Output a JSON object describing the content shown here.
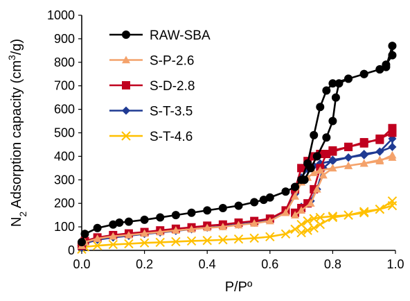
{
  "chart_data": {
    "type": "line",
    "title": "",
    "xlabel": "P/Pº",
    "ylabel_parts": [
      "N",
      "2",
      " Adsorption capacity (cm",
      "3",
      "/g)"
    ],
    "xlim": [
      0,
      1.0
    ],
    "ylim": [
      0,
      1000
    ],
    "x_ticks": [
      "0.0",
      "0.2",
      "0.4",
      "0.6",
      "0.8",
      "1.0"
    ],
    "y_ticks": [
      "0",
      "100",
      "200",
      "300",
      "400",
      "500",
      "600",
      "700",
      "800",
      "900",
      "1000"
    ],
    "grid": false,
    "legend_position": "top-left",
    "series": [
      {
        "name": "RAW-SBA",
        "color": "#000000",
        "marker": "circle",
        "x": [
          0.0,
          0.01,
          0.05,
          0.1,
          0.12,
          0.15,
          0.2,
          0.25,
          0.3,
          0.35,
          0.4,
          0.45,
          0.5,
          0.55,
          0.58,
          0.6,
          0.65,
          0.68,
          0.7,
          0.72,
          0.74,
          0.76,
          0.78,
          0.8,
          0.85,
          0.9,
          0.95,
          0.97,
          0.99,
          0.99,
          0.97,
          0.95,
          0.9,
          0.85,
          0.82,
          0.81,
          0.8,
          0.78,
          0.75,
          0.73,
          0.71
        ],
        "y": [
          35,
          70,
          95,
          110,
          118,
          122,
          130,
          140,
          150,
          160,
          170,
          180,
          190,
          205,
          215,
          225,
          250,
          270,
          300,
          370,
          490,
          610,
          680,
          710,
          730,
          750,
          770,
          790,
          830,
          870,
          780,
          770,
          750,
          730,
          710,
          650,
          550,
          480,
          400,
          350,
          300
        ]
      },
      {
        "name": "S-P-2.6",
        "color": "#F4A26B",
        "marker": "triangle",
        "x": [
          0.0,
          0.01,
          0.05,
          0.1,
          0.15,
          0.2,
          0.25,
          0.3,
          0.35,
          0.4,
          0.45,
          0.5,
          0.55,
          0.6,
          0.65,
          0.68,
          0.7,
          0.72,
          0.74,
          0.76,
          0.8,
          0.85,
          0.9,
          0.95,
          0.99,
          0.99,
          0.95,
          0.9,
          0.85,
          0.8,
          0.77,
          0.75,
          0.73,
          0.7,
          0.68
        ],
        "y": [
          20,
          35,
          50,
          60,
          65,
          72,
          78,
          85,
          90,
          96,
          100,
          108,
          115,
          125,
          160,
          230,
          290,
          310,
          330,
          340,
          350,
          360,
          370,
          385,
          395,
          405,
          380,
          370,
          360,
          350,
          320,
          260,
          200,
          170,
          150
        ]
      },
      {
        "name": "S-D-2.8",
        "color": "#C0001F",
        "marker": "square",
        "x": [
          0.0,
          0.01,
          0.05,
          0.1,
          0.15,
          0.2,
          0.25,
          0.3,
          0.35,
          0.4,
          0.45,
          0.5,
          0.55,
          0.6,
          0.65,
          0.68,
          0.7,
          0.72,
          0.74,
          0.76,
          0.8,
          0.85,
          0.9,
          0.95,
          0.99,
          0.99,
          0.95,
          0.9,
          0.85,
          0.8,
          0.78,
          0.76,
          0.74,
          0.72,
          0.7,
          0.68
        ],
        "y": [
          20,
          40,
          55,
          65,
          72,
          78,
          85,
          92,
          98,
          105,
          110,
          118,
          125,
          135,
          170,
          260,
          350,
          380,
          400,
          410,
          420,
          440,
          455,
          475,
          500,
          520,
          470,
          460,
          440,
          425,
          410,
          350,
          260,
          200,
          180,
          160
        ]
      },
      {
        "name": "S-T-3.5",
        "color": "#1F3A93",
        "marker": "diamond",
        "x": [
          0.0,
          0.01,
          0.05,
          0.1,
          0.15,
          0.2,
          0.25,
          0.3,
          0.35,
          0.4,
          0.45,
          0.5,
          0.55,
          0.6,
          0.65,
          0.68,
          0.7,
          0.72,
          0.74,
          0.76,
          0.8,
          0.85,
          0.9,
          0.95,
          0.99,
          0.99,
          0.95,
          0.9,
          0.85,
          0.8,
          0.77,
          0.75,
          0.73,
          0.7,
          0.68
        ],
        "y": [
          10,
          30,
          45,
          55,
          62,
          70,
          76,
          83,
          90,
          97,
          103,
          110,
          118,
          130,
          165,
          240,
          310,
          345,
          360,
          370,
          380,
          395,
          405,
          420,
          440,
          475,
          420,
          410,
          395,
          385,
          350,
          260,
          210,
          185,
          160
        ]
      },
      {
        "name": "S-T-4.6",
        "color": "#FFC000",
        "marker": "x",
        "x": [
          0.0,
          0.01,
          0.05,
          0.1,
          0.15,
          0.2,
          0.25,
          0.3,
          0.35,
          0.4,
          0.45,
          0.5,
          0.55,
          0.6,
          0.65,
          0.68,
          0.7,
          0.72,
          0.74,
          0.76,
          0.8,
          0.85,
          0.9,
          0.95,
          0.99,
          0.99,
          0.95,
          0.9,
          0.85,
          0.8,
          0.76,
          0.74,
          0.72,
          0.7
        ],
        "y": [
          5,
          15,
          20,
          25,
          28,
          32,
          34,
          37,
          40,
          42,
          45,
          48,
          52,
          58,
          70,
          90,
          110,
          125,
          135,
          140,
          145,
          150,
          160,
          175,
          190,
          210,
          175,
          165,
          150,
          140,
          110,
          95,
          85,
          75
        ]
      }
    ]
  }
}
